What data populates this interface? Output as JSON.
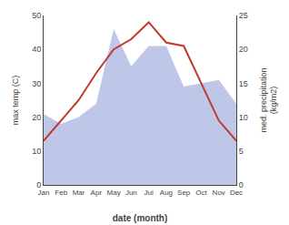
{
  "chart_data": {
    "type": "line",
    "categories": [
      "Jan",
      "Feb",
      "Mar",
      "Apr",
      "May",
      "Jun",
      "Jul",
      "Aug",
      "Sep",
      "Oct",
      "Nov",
      "Dec"
    ],
    "series": [
      {
        "type": "area",
        "color": "#bfc7e8",
        "values": [
          21,
          18,
          20,
          24,
          46,
          35,
          41,
          41,
          29,
          30,
          31,
          24
        ]
      },
      {
        "type": "line",
        "color": "#c0392b",
        "values": [
          13,
          19,
          25,
          33,
          40,
          43,
          48,
          42,
          41,
          30,
          19,
          13
        ]
      }
    ],
    "xlabel": "date (month)",
    "ylabel": "max temp (C)",
    "y2label": "med. precipitation\n(kg/m2)",
    "ylim": [
      0,
      50
    ],
    "yticks": [
      0,
      10,
      20,
      30,
      40,
      50
    ],
    "y2lim": [
      0,
      25
    ],
    "y2ticks": [
      0,
      5,
      10,
      15,
      20,
      25
    ],
    "grid": false
  }
}
